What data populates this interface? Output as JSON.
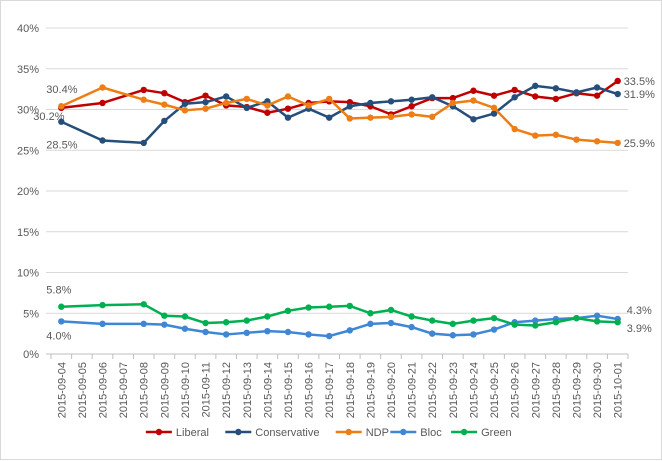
{
  "chart_data": {
    "type": "line",
    "title": "",
    "xlabel": "",
    "ylabel": "",
    "ylim": [
      0,
      40
    ],
    "yticks": [
      "0%",
      "5%",
      "10%",
      "15%",
      "20%",
      "25%",
      "30%",
      "35%",
      "40%"
    ],
    "grid": true,
    "legend": "bottom",
    "categories": [
      "2015-09-04",
      "2015-09-05",
      "2015-09-06",
      "2015-09-07",
      "2015-09-08",
      "2015-09-09",
      "2015-09-10",
      "2015-09-11",
      "2015-09-12",
      "2015-09-13",
      "2015-09-14",
      "2015-09-15",
      "2015-09-16",
      "2015-09-17",
      "2015-09-18",
      "2015-09-19",
      "2015-09-20",
      "2015-09-21",
      "2015-09-22",
      "2015-09-23",
      "2015-09-24",
      "2015-09-25",
      "2015-09-26",
      "2015-09-27",
      "2015-09-28",
      "2015-09-29",
      "2015-09-30",
      "2015-10-01"
    ],
    "x": [
      "2015-09-04",
      "2015-09-06",
      "2015-09-08",
      "2015-09-09",
      "2015-09-10",
      "2015-09-11",
      "2015-09-12",
      "2015-09-13",
      "2015-09-14",
      "2015-09-15",
      "2015-09-16",
      "2015-09-17",
      "2015-09-18",
      "2015-09-19",
      "2015-09-20",
      "2015-09-21",
      "2015-09-22",
      "2015-09-23",
      "2015-09-24",
      "2015-09-25",
      "2015-09-26",
      "2015-09-27",
      "2015-09-28",
      "2015-09-29",
      "2015-09-30",
      "2015-10-01"
    ],
    "series": [
      {
        "name": "Liberal",
        "color": "#c00000",
        "values": [
          30.2,
          30.8,
          32.4,
          32.0,
          30.9,
          31.7,
          30.5,
          30.3,
          29.6,
          30.1,
          30.8,
          31.0,
          30.9,
          30.4,
          29.4,
          30.4,
          31.4,
          31.4,
          32.3,
          31.7,
          32.4,
          31.6,
          31.3,
          32.0,
          31.7,
          33.5
        ],
        "first_label": "30.2%",
        "last_label": "33.5%"
      },
      {
        "name": "Conservative",
        "color": "#254f7a",
        "values": [
          28.5,
          26.2,
          25.9,
          28.6,
          30.7,
          30.9,
          31.6,
          30.2,
          31.0,
          29.0,
          30.1,
          29.0,
          30.4,
          30.8,
          31.0,
          31.2,
          31.5,
          30.4,
          28.8,
          29.5,
          31.5,
          32.9,
          32.6,
          32.1,
          32.7,
          31.9
        ],
        "first_label": "28.5%",
        "last_label": "31.9%"
      },
      {
        "name": "NDP",
        "color": "#ed7d14",
        "values": [
          30.4,
          32.7,
          31.2,
          30.6,
          29.9,
          30.1,
          30.8,
          31.3,
          30.5,
          31.6,
          30.5,
          31.3,
          28.9,
          29.0,
          29.1,
          29.4,
          29.1,
          30.8,
          31.1,
          30.2,
          27.6,
          26.8,
          26.9,
          26.3,
          26.1,
          25.9
        ],
        "first_label": "30.4%",
        "last_label": "25.9%"
      },
      {
        "name": "Bloc",
        "color": "#3f86d4",
        "values": [
          4.0,
          3.7,
          3.7,
          3.6,
          3.1,
          2.7,
          2.4,
          2.6,
          2.8,
          2.7,
          2.4,
          2.2,
          2.9,
          3.7,
          3.8,
          3.3,
          2.5,
          2.3,
          2.4,
          3.0,
          3.9,
          4.1,
          4.3,
          4.4,
          4.7,
          4.3
        ],
        "first_label": "4.0%",
        "last_label": "4.3%"
      },
      {
        "name": "Green",
        "color": "#00b050",
        "values": [
          5.8,
          6.0,
          6.1,
          4.7,
          4.6,
          3.8,
          3.9,
          4.1,
          4.6,
          5.3,
          5.7,
          5.8,
          5.9,
          5.0,
          5.4,
          4.6,
          4.1,
          3.7,
          4.1,
          4.4,
          3.6,
          3.5,
          3.9,
          4.4,
          4.0,
          3.9
        ],
        "first_label": "5.8%",
        "last_label": "3.9%"
      }
    ]
  }
}
